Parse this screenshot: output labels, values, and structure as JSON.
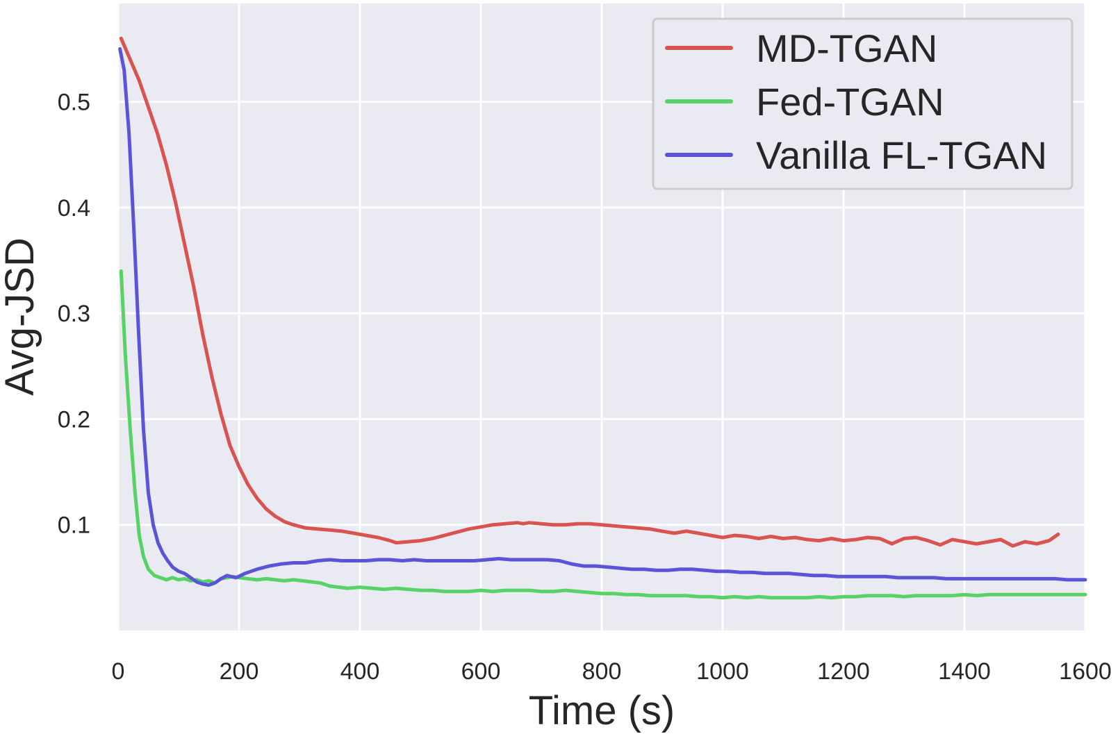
{
  "chart_data": {
    "type": "line",
    "title": "",
    "xlabel": "Time (s)",
    "ylabel": "Avg-JSD",
    "xlim": [
      0,
      1600
    ],
    "ylim": [
      0.0,
      0.593
    ],
    "xticks": [
      0,
      200,
      400,
      600,
      800,
      1000,
      1200,
      1400,
      1600
    ],
    "xtick_labels": [
      "0",
      "200",
      "400",
      "600",
      "800",
      "1000",
      "1200",
      "1400",
      "1600"
    ],
    "yticks": [
      0.1,
      0.2,
      0.3,
      0.4,
      0.5
    ],
    "ytick_labels": [
      "0.1",
      "0.2",
      "0.3",
      "0.4",
      "0.5"
    ],
    "grid": true,
    "legend_position": "top-right",
    "colors": {
      "background": "#eaeaf2",
      "grid": "#ffffff",
      "text": "#262626",
      "legend_border": "#cccccc"
    },
    "series": [
      {
        "name": "MD-TGAN",
        "color": "#d9534f",
        "x": [
          5,
          20,
          35,
          50,
          65,
          80,
          95,
          110,
          125,
          140,
          155,
          170,
          185,
          200,
          215,
          230,
          245,
          260,
          275,
          290,
          310,
          330,
          350,
          370,
          390,
          410,
          430,
          450,
          460,
          480,
          500,
          520,
          540,
          560,
          580,
          600,
          620,
          640,
          660,
          670,
          680,
          700,
          720,
          740,
          760,
          780,
          800,
          820,
          840,
          860,
          880,
          900,
          920,
          940,
          960,
          980,
          1000,
          1020,
          1040,
          1060,
          1080,
          1100,
          1120,
          1140,
          1160,
          1180,
          1200,
          1220,
          1240,
          1260,
          1280,
          1300,
          1320,
          1340,
          1360,
          1380,
          1400,
          1420,
          1440,
          1460,
          1480,
          1500,
          1520,
          1540,
          1555
        ],
        "y": [
          0.56,
          0.54,
          0.52,
          0.495,
          0.47,
          0.44,
          0.405,
          0.365,
          0.325,
          0.28,
          0.24,
          0.205,
          0.175,
          0.155,
          0.138,
          0.125,
          0.115,
          0.108,
          0.103,
          0.1,
          0.097,
          0.096,
          0.095,
          0.094,
          0.092,
          0.09,
          0.088,
          0.085,
          0.083,
          0.084,
          0.085,
          0.087,
          0.09,
          0.093,
          0.096,
          0.098,
          0.1,
          0.101,
          0.102,
          0.101,
          0.102,
          0.101,
          0.1,
          0.1,
          0.101,
          0.101,
          0.1,
          0.099,
          0.098,
          0.097,
          0.096,
          0.094,
          0.092,
          0.094,
          0.092,
          0.09,
          0.088,
          0.09,
          0.089,
          0.087,
          0.089,
          0.087,
          0.088,
          0.086,
          0.085,
          0.087,
          0.085,
          0.086,
          0.088,
          0.087,
          0.082,
          0.087,
          0.088,
          0.085,
          0.081,
          0.086,
          0.084,
          0.082,
          0.084,
          0.086,
          0.08,
          0.084,
          0.082,
          0.085,
          0.091
        ]
      },
      {
        "name": "Fed-TGAN",
        "color": "#56d364",
        "x": [
          5,
          12,
          20,
          28,
          35,
          42,
          50,
          60,
          70,
          80,
          90,
          100,
          110,
          120,
          130,
          140,
          150,
          160,
          170,
          180,
          190,
          200,
          215,
          230,
          245,
          260,
          275,
          290,
          305,
          320,
          335,
          350,
          365,
          380,
          400,
          420,
          440,
          460,
          480,
          500,
          520,
          540,
          560,
          580,
          600,
          620,
          640,
          660,
          680,
          700,
          720,
          740,
          760,
          780,
          800,
          820,
          840,
          860,
          880,
          900,
          920,
          940,
          960,
          980,
          1000,
          1020,
          1040,
          1060,
          1080,
          1100,
          1120,
          1140,
          1160,
          1180,
          1200,
          1220,
          1240,
          1260,
          1280,
          1300,
          1320,
          1340,
          1360,
          1380,
          1400,
          1420,
          1440,
          1460,
          1480,
          1500,
          1520,
          1540,
          1560,
          1580,
          1600
        ],
        "y": [
          0.34,
          0.26,
          0.19,
          0.13,
          0.09,
          0.07,
          0.058,
          0.052,
          0.05,
          0.048,
          0.05,
          0.048,
          0.049,
          0.047,
          0.048,
          0.046,
          0.047,
          0.045,
          0.049,
          0.05,
          0.051,
          0.05,
          0.049,
          0.048,
          0.049,
          0.048,
          0.047,
          0.048,
          0.047,
          0.046,
          0.045,
          0.042,
          0.041,
          0.04,
          0.041,
          0.04,
          0.039,
          0.04,
          0.039,
          0.038,
          0.038,
          0.037,
          0.037,
          0.037,
          0.038,
          0.037,
          0.038,
          0.038,
          0.038,
          0.037,
          0.037,
          0.038,
          0.037,
          0.036,
          0.035,
          0.035,
          0.034,
          0.034,
          0.033,
          0.033,
          0.033,
          0.033,
          0.032,
          0.032,
          0.031,
          0.032,
          0.031,
          0.032,
          0.031,
          0.031,
          0.031,
          0.031,
          0.032,
          0.031,
          0.032,
          0.032,
          0.033,
          0.033,
          0.033,
          0.032,
          0.033,
          0.033,
          0.033,
          0.033,
          0.034,
          0.033,
          0.034,
          0.034,
          0.034,
          0.034,
          0.034,
          0.034,
          0.034,
          0.034,
          0.034
        ]
      },
      {
        "name": "Vanilla FL-TGAN",
        "color": "#5b54d9",
        "x": [
          3,
          10,
          18,
          26,
          34,
          42,
          50,
          58,
          66,
          74,
          82,
          90,
          100,
          110,
          120,
          130,
          140,
          150,
          160,
          170,
          180,
          195,
          210,
          230,
          250,
          270,
          290,
          310,
          330,
          350,
          370,
          390,
          410,
          430,
          450,
          470,
          490,
          510,
          530,
          550,
          570,
          590,
          610,
          630,
          650,
          670,
          690,
          710,
          730,
          750,
          770,
          790,
          810,
          830,
          850,
          870,
          890,
          910,
          930,
          950,
          970,
          990,
          1010,
          1030,
          1050,
          1070,
          1090,
          1110,
          1130,
          1150,
          1170,
          1190,
          1210,
          1230,
          1250,
          1270,
          1290,
          1310,
          1330,
          1350,
          1370,
          1390,
          1410,
          1430,
          1450,
          1470,
          1490,
          1510,
          1530,
          1550,
          1570,
          1590,
          1600
        ],
        "y": [
          0.55,
          0.53,
          0.47,
          0.38,
          0.28,
          0.19,
          0.13,
          0.1,
          0.083,
          0.073,
          0.066,
          0.06,
          0.056,
          0.054,
          0.05,
          0.046,
          0.044,
          0.043,
          0.045,
          0.049,
          0.052,
          0.05,
          0.054,
          0.058,
          0.061,
          0.063,
          0.064,
          0.064,
          0.066,
          0.067,
          0.066,
          0.066,
          0.066,
          0.067,
          0.067,
          0.066,
          0.067,
          0.066,
          0.066,
          0.066,
          0.066,
          0.066,
          0.067,
          0.068,
          0.067,
          0.067,
          0.067,
          0.067,
          0.066,
          0.063,
          0.061,
          0.061,
          0.06,
          0.059,
          0.058,
          0.058,
          0.057,
          0.057,
          0.058,
          0.058,
          0.057,
          0.056,
          0.056,
          0.055,
          0.055,
          0.054,
          0.054,
          0.054,
          0.053,
          0.052,
          0.052,
          0.051,
          0.051,
          0.051,
          0.051,
          0.051,
          0.05,
          0.05,
          0.05,
          0.05,
          0.049,
          0.049,
          0.049,
          0.049,
          0.049,
          0.049,
          0.049,
          0.049,
          0.049,
          0.049,
          0.048,
          0.048,
          0.048
        ]
      }
    ]
  }
}
